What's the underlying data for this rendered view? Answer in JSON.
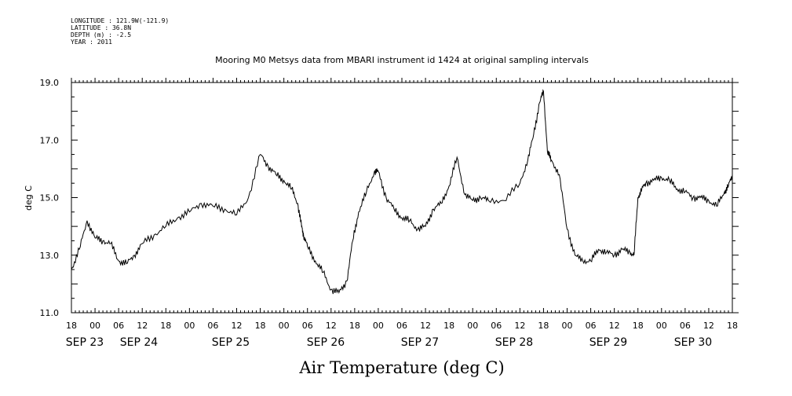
{
  "header": {
    "longitude": "LONGITUDE : 121.9W(-121.9)",
    "latitude": "LATITUDE : 36.8N",
    "depth": "DEPTH (m) : -2.5",
    "year": "YEAR : 2011"
  },
  "chart_data": {
    "type": "line",
    "title": "Mooring M0 Metsys data from MBARI instrument id 1424 at original sampling intervals",
    "xlabel": "Air Temperature (deg C)",
    "ylabel": "deg C",
    "ylim": [
      11.0,
      19.0
    ],
    "xlim": [
      "2011-09-23 18:00",
      "2011-09-30 18:00"
    ],
    "yticks": [
      "11.0",
      "13.0",
      "15.0",
      "17.0",
      "19.0"
    ],
    "xtick_hours": [
      "18",
      "00",
      "06",
      "12",
      "18",
      "00",
      "06",
      "12",
      "18",
      "00",
      "06",
      "12",
      "18",
      "00",
      "06",
      "12",
      "18",
      "00",
      "06",
      "12",
      "18",
      "00",
      "06",
      "12",
      "18",
      "00",
      "06",
      "12",
      "18"
    ],
    "date_labels": [
      "SEP 23",
      "SEP 24",
      "SEP 25",
      "SEP 26",
      "SEP 27",
      "SEP 28",
      "SEP 29",
      "SEP 30"
    ],
    "grid": false,
    "line_color": "#000000",
    "series": [
      {
        "x": [
          "2011-09-23 18:00",
          "2011-09-23 20:00",
          "2011-09-23 22:00",
          "2011-09-24 00:00",
          "2011-09-24 02:00",
          "2011-09-24 04:00",
          "2011-09-24 06:00",
          "2011-09-24 08:00",
          "2011-09-24 10:00",
          "2011-09-24 12:00",
          "2011-09-24 15:00",
          "2011-09-24 18:00",
          "2011-09-24 21:00",
          "2011-09-25 00:00",
          "2011-09-25 03:00",
          "2011-09-25 06:00",
          "2011-09-25 09:00",
          "2011-09-25 12:00",
          "2011-09-25 15:00",
          "2011-09-25 18:00",
          "2011-09-25 20:00",
          "2011-09-25 22:00",
          "2011-09-26 00:00",
          "2011-09-26 02:00",
          "2011-09-26 03:30",
          "2011-09-26 04:30",
          "2011-09-26 05:00",
          "2011-09-26 06:00",
          "2011-09-26 08:00",
          "2011-09-26 10:00",
          "2011-09-26 12:00",
          "2011-09-26 14:00",
          "2011-09-26 16:00",
          "2011-09-26 17:30",
          "2011-09-26 19:00",
          "2011-09-26 21:00",
          "2011-09-26 23:00",
          "2011-09-27 00:00",
          "2011-09-27 02:00",
          "2011-09-27 04:00",
          "2011-09-27 06:00",
          "2011-09-27 08:00",
          "2011-09-27 10:00",
          "2011-09-27 12:00",
          "2011-09-27 14:00",
          "2011-09-27 16:00",
          "2011-09-27 18:00",
          "2011-09-27 20:00",
          "2011-09-27 22:00",
          "2011-09-28 00:00",
          "2011-09-28 02:00",
          "2011-09-28 04:00",
          "2011-09-28 08:00",
          "2011-09-28 12:00",
          "2011-09-28 14:00",
          "2011-09-28 15:30",
          "2011-09-28 17:00",
          "2011-09-28 18:00",
          "2011-09-28 19:00",
          "2011-09-28 20:00",
          "2011-09-28 22:00",
          "2011-09-29 00:00",
          "2011-09-29 02:00",
          "2011-09-29 04:00",
          "2011-09-29 06:00",
          "2011-09-29 08:00",
          "2011-09-29 10:00",
          "2011-09-29 12:00",
          "2011-09-29 14:00",
          "2011-09-29 16:00",
          "2011-09-29 17:00",
          "2011-09-29 18:00",
          "2011-09-29 19:00",
          "2011-09-29 20:00",
          "2011-09-29 22:00",
          "2011-09-30 00:00",
          "2011-09-30 02:00",
          "2011-09-30 04:00",
          "2011-09-30 06:00",
          "2011-09-30 08:00",
          "2011-09-30 10:00",
          "2011-09-30 12:00",
          "2011-09-30 14:00",
          "2011-09-30 16:00",
          "2011-09-30 17:00",
          "2011-09-30 18:00"
        ],
        "values": [
          12.5,
          13.2,
          14.2,
          13.6,
          13.5,
          13.4,
          12.8,
          12.7,
          13.0,
          13.4,
          13.7,
          14.0,
          14.3,
          14.5,
          14.8,
          14.7,
          14.6,
          14.4,
          15.0,
          16.5,
          16.1,
          15.8,
          15.6,
          15.3,
          14.8,
          14.0,
          13.7,
          13.3,
          12.8,
          12.4,
          11.8,
          11.7,
          12.1,
          13.5,
          14.5,
          15.2,
          15.9,
          15.9,
          15.0,
          14.6,
          14.3,
          14.2,
          13.9,
          14.0,
          14.6,
          14.8,
          15.4,
          16.4,
          15.1,
          14.9,
          15.0,
          14.9,
          14.9,
          15.5,
          16.3,
          17.2,
          18.3,
          18.7,
          16.6,
          16.3,
          15.8,
          13.9,
          13.0,
          12.8,
          12.8,
          13.2,
          13.1,
          13.0,
          13.2,
          13.1,
          13.0,
          15.0,
          15.3,
          15.5,
          15.6,
          15.7,
          15.6,
          15.3,
          15.2,
          15.0,
          15.0,
          14.9,
          14.7,
          15.2,
          15.4,
          15.8
        ]
      }
    ]
  }
}
